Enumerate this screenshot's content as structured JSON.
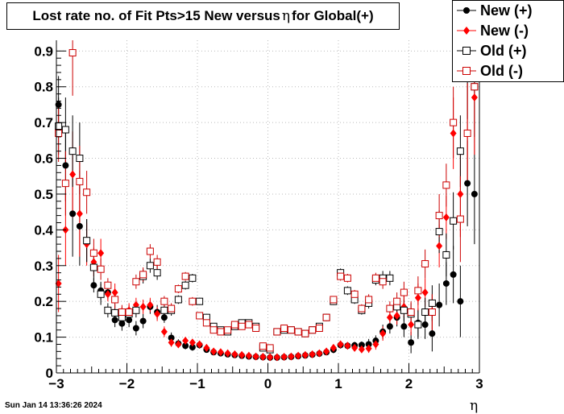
{
  "title_prefix": "Lost rate no. of Fit Pts>15 New versus ",
  "title_symbol": "η",
  "title_suffix": " for Global(+)",
  "footer": "Sun Jan 14 13:36:26 2024",
  "chart_data": {
    "type": "scatter",
    "title": "Lost rate no. of Fit Pts>15 New versus η for Global(+)",
    "xlabel": "η",
    "ylabel": "",
    "xlim": [
      -3,
      3
    ],
    "ylim": [
      0,
      0.93
    ],
    "xticks": [
      -3,
      -2,
      -1,
      0,
      1,
      2,
      3
    ],
    "xtick_labels": [
      "−3",
      "−2",
      "−1",
      "0",
      "1",
      "2",
      "3"
    ],
    "yticks": [
      0,
      0.1,
      0.2,
      0.3,
      0.4,
      0.5,
      0.6,
      0.7,
      0.8,
      0.9
    ],
    "ytick_labels": [
      "0",
      "0.1",
      "0.2",
      "0.3",
      "0.4",
      "0.5",
      "0.6",
      "0.7",
      "0.8",
      "0.9"
    ],
    "grid": true,
    "legend_position": "top-right",
    "series": [
      {
        "name": "New (+)",
        "marker": "filled-circle",
        "color": "#000000",
        "x": [
          -2.97,
          -2.87,
          -2.77,
          -2.67,
          -2.57,
          -2.47,
          -2.37,
          -2.27,
          -2.17,
          -2.07,
          -1.97,
          -1.87,
          -1.77,
          -1.67,
          -1.57,
          -1.47,
          -1.37,
          -1.27,
          -1.17,
          -1.07,
          -0.97,
          -0.87,
          -0.77,
          -0.67,
          -0.57,
          -0.47,
          -0.37,
          -0.27,
          -0.17,
          -0.07,
          0.03,
          0.13,
          0.23,
          0.33,
          0.43,
          0.53,
          0.63,
          0.73,
          0.83,
          0.93,
          1.03,
          1.13,
          1.23,
          1.33,
          1.43,
          1.53,
          1.63,
          1.73,
          1.83,
          1.93,
          2.03,
          2.13,
          2.23,
          2.33,
          2.43,
          2.53,
          2.63,
          2.73,
          2.83,
          2.93
        ],
        "y": [
          0.75,
          0.58,
          0.445,
          0.41,
          0.37,
          0.245,
          0.23,
          0.225,
          0.148,
          0.138,
          0.148,
          0.125,
          0.145,
          0.185,
          0.17,
          0.155,
          0.098,
          0.082,
          0.076,
          0.072,
          0.078,
          0.065,
          0.058,
          0.055,
          0.052,
          0.05,
          0.048,
          0.046,
          0.045,
          0.044,
          0.043,
          0.043,
          0.044,
          0.045,
          0.047,
          0.049,
          0.051,
          0.054,
          0.058,
          0.065,
          0.078,
          0.076,
          0.077,
          0.078,
          0.08,
          0.09,
          0.115,
          0.13,
          0.155,
          0.13,
          0.085,
          0.14,
          0.135,
          0.11,
          0.19,
          0.25,
          0.275,
          0.2,
          0.53,
          0.5
        ],
        "yerr": [
          0.08,
          0.1,
          0.12,
          0.11,
          0.06,
          0.02,
          0.025,
          0.02,
          0.02,
          0.02,
          0.02,
          0.02,
          0.02,
          0.02,
          0.02,
          0.015,
          0.015,
          0.012,
          0.01,
          0.01,
          0.01,
          0.008,
          0.006,
          0.005,
          0.005,
          0.005,
          0.005,
          0.005,
          0.005,
          0.005,
          0.005,
          0.005,
          0.005,
          0.005,
          0.005,
          0.005,
          0.005,
          0.006,
          0.008,
          0.01,
          0.01,
          0.01,
          0.01,
          0.01,
          0.015,
          0.015,
          0.02,
          0.02,
          0.025,
          0.03,
          0.03,
          0.04,
          0.04,
          0.05,
          0.06,
          0.06,
          0.08,
          0.1,
          0.12,
          0.14
        ]
      },
      {
        "name": "New (-)",
        "marker": "filled-diamond",
        "color": "#ff0000",
        "x": [
          -2.97,
          -2.87,
          -2.77,
          -2.67,
          -2.57,
          -2.47,
          -2.37,
          -2.27,
          -2.17,
          -2.07,
          -1.97,
          -1.87,
          -1.77,
          -1.67,
          -1.57,
          -1.47,
          -1.37,
          -1.27,
          -1.17,
          -1.07,
          -0.97,
          -0.87,
          -0.77,
          -0.67,
          -0.57,
          -0.47,
          -0.37,
          -0.27,
          -0.17,
          -0.07,
          0.03,
          0.13,
          0.23,
          0.33,
          0.43,
          0.53,
          0.63,
          0.73,
          0.83,
          0.93,
          1.03,
          1.13,
          1.23,
          1.33,
          1.43,
          1.53,
          1.63,
          1.73,
          1.83,
          1.93,
          2.03,
          2.13,
          2.23,
          2.33,
          2.43,
          2.53,
          2.63,
          2.73,
          2.83,
          2.93
        ],
        "y": [
          0.25,
          0.4,
          0.555,
          0.445,
          0.36,
          0.31,
          0.335,
          0.22,
          0.225,
          0.165,
          0.175,
          0.19,
          0.185,
          0.19,
          0.165,
          0.115,
          0.085,
          0.08,
          0.09,
          0.085,
          0.08,
          0.07,
          0.06,
          0.058,
          0.055,
          0.052,
          0.05,
          0.048,
          0.046,
          0.045,
          0.044,
          0.044,
          0.045,
          0.046,
          0.048,
          0.05,
          0.052,
          0.055,
          0.06,
          0.07,
          0.08,
          0.076,
          0.07,
          0.066,
          0.068,
          0.08,
          0.11,
          0.155,
          0.16,
          0.185,
          0.135,
          0.21,
          0.225,
          0.17,
          0.355,
          0.435,
          0.67,
          0.5,
          0.67,
          0.77
        ],
        "yerr": [
          0.08,
          0.1,
          0.12,
          0.12,
          0.06,
          0.04,
          0.04,
          0.02,
          0.025,
          0.02,
          0.02,
          0.02,
          0.02,
          0.02,
          0.02,
          0.015,
          0.012,
          0.01,
          0.01,
          0.01,
          0.01,
          0.008,
          0.006,
          0.005,
          0.005,
          0.005,
          0.005,
          0.005,
          0.005,
          0.005,
          0.005,
          0.005,
          0.005,
          0.005,
          0.005,
          0.005,
          0.005,
          0.006,
          0.008,
          0.01,
          0.01,
          0.01,
          0.01,
          0.01,
          0.012,
          0.015,
          0.02,
          0.02,
          0.025,
          0.03,
          0.03,
          0.04,
          0.04,
          0.05,
          0.06,
          0.06,
          0.1,
          0.12,
          0.14,
          0.16
        ]
      },
      {
        "name": "Old (+)",
        "marker": "open-square",
        "color": "#000000",
        "x": [
          -2.97,
          -2.87,
          -2.77,
          -2.67,
          -2.57,
          -2.47,
          -2.37,
          -2.27,
          -2.17,
          -2.07,
          -1.97,
          -1.87,
          -1.77,
          -1.67,
          -1.57,
          -1.47,
          -1.37,
          -1.27,
          -1.17,
          -1.07,
          -0.97,
          -0.87,
          -0.77,
          -0.67,
          -0.57,
          -0.47,
          -0.37,
          -0.27,
          -0.17,
          -0.07,
          0.03,
          0.13,
          0.23,
          0.33,
          0.43,
          0.53,
          0.63,
          0.73,
          0.83,
          0.93,
          1.03,
          1.13,
          1.23,
          1.33,
          1.43,
          1.53,
          1.63,
          1.73,
          1.83,
          1.93,
          2.03,
          2.13,
          2.23,
          2.33,
          2.43,
          2.53,
          2.63,
          2.73,
          2.83,
          2.93
        ],
        "y": [
          0.69,
          0.68,
          0.62,
          0.6,
          0.37,
          0.295,
          0.22,
          0.175,
          0.168,
          0.155,
          0.165,
          0.175,
          0.27,
          0.3,
          0.28,
          0.175,
          0.175,
          0.205,
          0.245,
          0.265,
          0.2,
          0.155,
          0.13,
          0.12,
          0.115,
          0.13,
          0.14,
          0.14,
          0.13,
          0.07,
          0.065,
          0.115,
          0.12,
          0.12,
          0.115,
          0.11,
          0.12,
          0.13,
          0.155,
          0.2,
          0.28,
          0.23,
          0.205,
          0.175,
          0.195,
          0.26,
          0.265,
          0.265,
          0.185,
          0.175,
          0.165,
          0.135,
          0.17,
          0.195,
          0.395,
          0.33,
          0.425,
          0.62,
          0.83,
          0.8
        ],
        "yerr": [
          0.08,
          0.09,
          0.1,
          0.1,
          0.06,
          0.04,
          0.03,
          0.02,
          0.025,
          0.02,
          0.02,
          0.02,
          0.02,
          0.02,
          0.02,
          0.015,
          0.015,
          0.012,
          0.012,
          0.012,
          0.01,
          0.01,
          0.008,
          0.008,
          0.008,
          0.008,
          0.008,
          0.008,
          0.008,
          0.008,
          0.008,
          0.008,
          0.008,
          0.008,
          0.008,
          0.008,
          0.008,
          0.008,
          0.01,
          0.01,
          0.012,
          0.012,
          0.012,
          0.012,
          0.015,
          0.015,
          0.02,
          0.02,
          0.025,
          0.03,
          0.03,
          0.04,
          0.04,
          0.05,
          0.06,
          0.06,
          0.08,
          0.1,
          0.12,
          0.14
        ]
      },
      {
        "name": "Old (-)",
        "marker": "open-square",
        "color": "#cc0000",
        "x": [
          -2.97,
          -2.87,
          -2.77,
          -2.67,
          -2.57,
          -2.47,
          -2.37,
          -2.27,
          -2.17,
          -2.07,
          -1.97,
          -1.87,
          -1.77,
          -1.67,
          -1.57,
          -1.47,
          -1.37,
          -1.27,
          -1.17,
          -1.07,
          -0.97,
          -0.87,
          -0.77,
          -0.67,
          -0.57,
          -0.47,
          -0.37,
          -0.27,
          -0.17,
          -0.07,
          0.03,
          0.13,
          0.23,
          0.33,
          0.43,
          0.53,
          0.63,
          0.73,
          0.83,
          0.93,
          1.03,
          1.13,
          1.23,
          1.33,
          1.43,
          1.53,
          1.63,
          1.73,
          1.83,
          1.93,
          2.03,
          2.13,
          2.23,
          2.33,
          2.43,
          2.53,
          2.63,
          2.73,
          2.83,
          2.93
        ],
        "y": [
          0.67,
          0.53,
          0.895,
          0.535,
          0.505,
          0.335,
          0.29,
          0.245,
          0.205,
          0.17,
          0.17,
          0.255,
          0.275,
          0.34,
          0.31,
          0.2,
          0.18,
          0.235,
          0.27,
          0.2,
          0.16,
          0.14,
          0.12,
          0.115,
          0.12,
          0.135,
          0.13,
          0.135,
          0.125,
          0.075,
          0.07,
          0.115,
          0.125,
          0.12,
          0.115,
          0.11,
          0.12,
          0.125,
          0.155,
          0.205,
          0.27,
          0.265,
          0.22,
          0.18,
          0.205,
          0.265,
          0.255,
          0.18,
          0.2,
          0.225,
          0.17,
          0.23,
          0.305,
          0.17,
          0.44,
          0.525,
          0.7,
          0.43,
          0.67,
          0.8
        ],
        "yerr": [
          0.08,
          0.09,
          0.12,
          0.1,
          0.06,
          0.04,
          0.03,
          0.02,
          0.025,
          0.02,
          0.02,
          0.02,
          0.02,
          0.02,
          0.02,
          0.015,
          0.015,
          0.012,
          0.012,
          0.012,
          0.01,
          0.01,
          0.008,
          0.008,
          0.008,
          0.008,
          0.008,
          0.008,
          0.008,
          0.008,
          0.008,
          0.008,
          0.008,
          0.008,
          0.008,
          0.008,
          0.008,
          0.008,
          0.01,
          0.01,
          0.012,
          0.012,
          0.012,
          0.012,
          0.015,
          0.015,
          0.02,
          0.02,
          0.025,
          0.03,
          0.03,
          0.04,
          0.04,
          0.05,
          0.06,
          0.06,
          0.1,
          0.12,
          0.14,
          0.16
        ]
      }
    ]
  }
}
